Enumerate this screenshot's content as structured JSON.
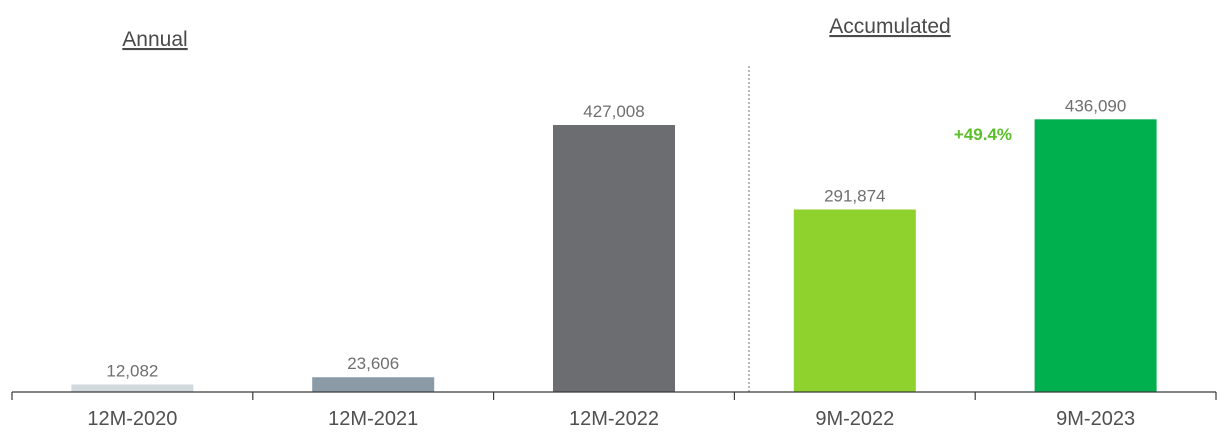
{
  "chart_data": {
    "type": "bar",
    "title": "",
    "xlabel": "",
    "ylabel": "",
    "categories": [
      "12M-2020",
      "12M-2021",
      "12M-2022",
      "9M-2022",
      "9M-2023"
    ],
    "values": [
      12082,
      23606,
      427008,
      291874,
      436090
    ],
    "value_labels": [
      "12,082",
      "23,606",
      "427,008",
      "291,874",
      "436,090"
    ],
    "bar_colors": [
      "#d2d9dd",
      "#8a9aa6",
      "#6b6d70",
      "#8fd12d",
      "#00b04f"
    ],
    "ylim": [
      0,
      480000
    ],
    "grid": false,
    "sections": [
      {
        "label": "Annual",
        "categories": [
          "12M-2020",
          "12M-2021",
          "12M-2022"
        ]
      },
      {
        "label": "Accumulated",
        "categories": [
          "9M-2022",
          "9M-2023"
        ]
      }
    ],
    "annotations": [
      {
        "text": "+49.4%",
        "color": "#5cbf2a",
        "between": [
          "9M-2022",
          "9M-2023"
        ]
      }
    ]
  }
}
